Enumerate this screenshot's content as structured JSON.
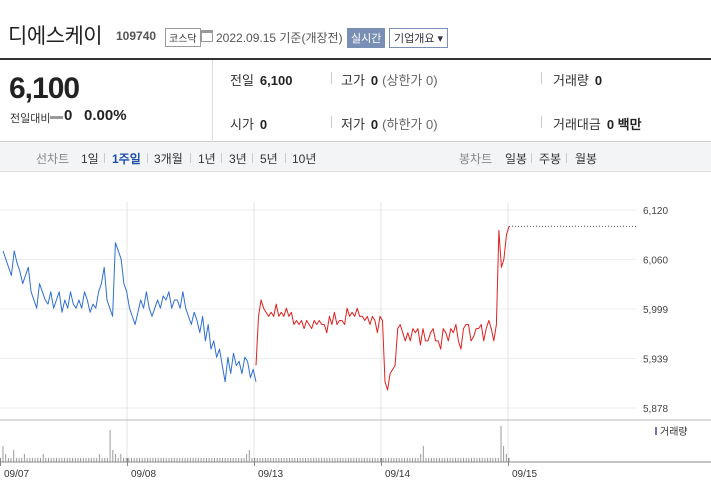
{
  "header": {
    "stock_name": "디에스케이",
    "stock_code": "109740",
    "market": "코스닥",
    "date_text": "2022.09.15 기준(개장전)",
    "realtime_label": "실시간",
    "company_info_label": "기업개요 ▾"
  },
  "summary": {
    "current_price": "6,100",
    "change_label": "전일대비",
    "change_value": "0",
    "change_rate": "0.00%",
    "prev_close_label": "전일",
    "prev_close": "6,100",
    "high_label": "고가",
    "high": "0",
    "upper_limit": "(상한가 0)",
    "volume_label": "거래량",
    "volume": "0",
    "open_label": "시가",
    "open": "0",
    "low_label": "저가",
    "low": "0",
    "lower_limit": "(하한가 0)",
    "amount_label": "거래대금",
    "amount": "0 백만"
  },
  "tabs": {
    "line_label": "선차트",
    "line_periods": [
      "1일",
      "1주일",
      "3개월",
      "1년",
      "3년",
      "5년",
      "10년"
    ],
    "active_period": "1주일",
    "candle_label": "봉차트",
    "candle_periods": [
      "일봉",
      "주봉",
      "월봉"
    ]
  },
  "colors": {
    "down": "#2f6fce",
    "up": "#e02020",
    "volume": "#999999",
    "accent": "#1e4fa8"
  },
  "chart_data": {
    "type": "line",
    "ylim": [
      5878,
      6120
    ],
    "y_ticks": [
      "6,120",
      "6,060",
      "5,999",
      "5,939",
      "5,878"
    ],
    "x_ticks": [
      "09/07",
      "09/08",
      "09/13",
      "09/14",
      "09/15"
    ],
    "legend": "거래량",
    "last_value": 6100,
    "series": [
      {
        "color": "down",
        "values": [
          6070,
          6060,
          6050,
          6040,
          6070,
          6055,
          6045,
          6030,
          6040,
          6050,
          6020,
          6010,
          6000,
          6030,
          6020,
          6010,
          6005,
          6020,
          6000,
          6010,
          6020,
          5995,
          6010,
          6000,
          6020,
          6005,
          6000,
          6010,
          6000,
          6020,
          6010,
          5995,
          6005,
          6000,
          6020,
          6030,
          6050,
          6010,
          6000,
          5990,
          6080,
          6070,
          6060,
          6030,
          6020,
          6000,
          5990,
          5980,
          5995,
          6010,
          6000,
          6020,
          6000,
          5990,
          6000,
          6010,
          6000,
          6015,
          6010,
          6020,
          6000,
          6010,
          6010,
          6000,
          6020,
          6000,
          5990,
          5980,
          5995,
          5985,
          5970,
          5990,
          5960,
          5980,
          5950,
          5960,
          5940,
          5950,
          5930,
          5910,
          5940,
          5920,
          5945,
          5930,
          5935,
          5920,
          5940,
          5935,
          5915,
          5925,
          5910
        ]
      },
      {
        "color": "up",
        "values": [
          5930,
          5990,
          6010,
          6000,
          5995,
          5990,
          5995,
          5990,
          6005,
          5990,
          5995,
          5990,
          6000,
          5990,
          5995,
          5980,
          5985,
          5980,
          5985,
          5975,
          5985,
          5980,
          5975,
          5985,
          5980,
          5985,
          5980,
          5980,
          5970,
          5990,
          5980,
          5995,
          5980,
          5985,
          5985,
          5980,
          6000,
          5990,
          5995,
          5990,
          6000,
          5990,
          5990,
          5985,
          5990,
          5980,
          5990,
          5985,
          5970,
          5990,
          5985,
          5910,
          5900,
          5920,
          5925,
          5930,
          5975,
          5980,
          5970,
          5960,
          5970,
          5960,
          5975,
          5970,
          5975,
          5955,
          5975,
          5960,
          5960,
          5970,
          5975,
          5960,
          5960,
          5950,
          5975,
          5970,
          5960,
          5975,
          5970,
          5980,
          5960,
          5950,
          5975,
          5980,
          5980,
          5960,
          5965,
          5975,
          5975,
          5980,
          5960,
          5975,
          5985,
          5975,
          5960,
          5980,
          6095,
          6050,
          6060,
          6090,
          6100
        ]
      }
    ],
    "volume": [
      4,
      2,
      1,
      1,
      3,
      1,
      1,
      1,
      2,
      1,
      1,
      1,
      1,
      1,
      1,
      2,
      1,
      1,
      1,
      1,
      1,
      1,
      1,
      1,
      1,
      1,
      1,
      1,
      1,
      1,
      1,
      1,
      1,
      1,
      1,
      1,
      2,
      1,
      1,
      1,
      8,
      3,
      2,
      1,
      2,
      1,
      1,
      1,
      1,
      1,
      1,
      1,
      1,
      1,
      1,
      1,
      1,
      1,
      1,
      1,
      1,
      1,
      1,
      1,
      1,
      1,
      1,
      1,
      1,
      1,
      1,
      1,
      1,
      1,
      1,
      1,
      1,
      1,
      1,
      1,
      1,
      1,
      1,
      1,
      1,
      1,
      1,
      1,
      1,
      1,
      1,
      2,
      3,
      1,
      1,
      1,
      1,
      1,
      1,
      1,
      1,
      1,
      1,
      1,
      1,
      1,
      1,
      1,
      1,
      1,
      1,
      1,
      1,
      1,
      1,
      1,
      1,
      1,
      1,
      1,
      1,
      1,
      1,
      1,
      1,
      1,
      1,
      1,
      1,
      1,
      1,
      1,
      1,
      1,
      1,
      1,
      1,
      1,
      1,
      1,
      1,
      1,
      1,
      1,
      1,
      1,
      1,
      1,
      1,
      1,
      1,
      1,
      1,
      1,
      1,
      1,
      2,
      4,
      1,
      1,
      1,
      1,
      1,
      1,
      1,
      1,
      1,
      1,
      1,
      1,
      1,
      1,
      1,
      1,
      1,
      1,
      1,
      1,
      1,
      1,
      1,
      1,
      1,
      1,
      1,
      1,
      9,
      4,
      2,
      1
    ]
  }
}
